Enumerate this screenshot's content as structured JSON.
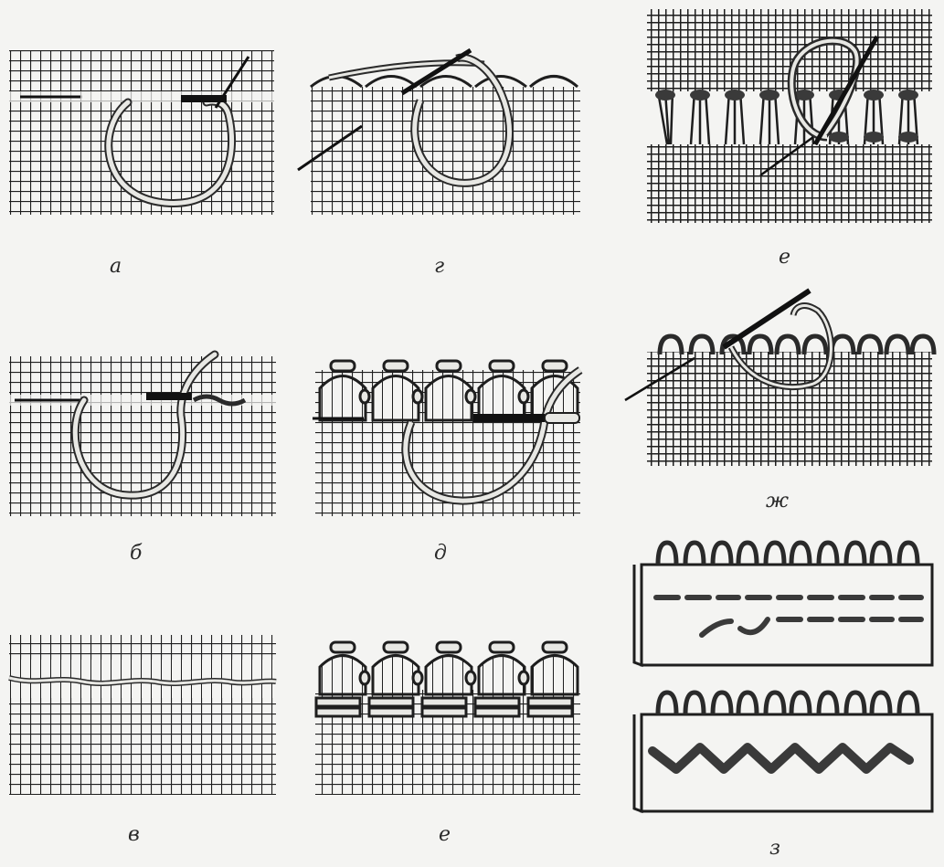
{
  "figure": {
    "colors": {
      "grid": "#1e1e1e",
      "thread": "#e8e8e4",
      "thread_outline": "#2a2a2a",
      "needle": "#111111",
      "background": "#f4f4f2",
      "dark_stitch": "#3a3a3a"
    }
  },
  "panels": [
    {
      "key": "a",
      "caption": "а"
    },
    {
      "key": "b",
      "caption": "б"
    },
    {
      "key": "v",
      "caption": "в"
    },
    {
      "key": "g",
      "caption": "г"
    },
    {
      "key": "d",
      "caption": "д"
    },
    {
      "key": "e1",
      "caption": "е"
    },
    {
      "key": "e2",
      "caption": "е"
    },
    {
      "key": "zh",
      "caption": "ж"
    },
    {
      "key": "z",
      "caption": "з"
    }
  ]
}
